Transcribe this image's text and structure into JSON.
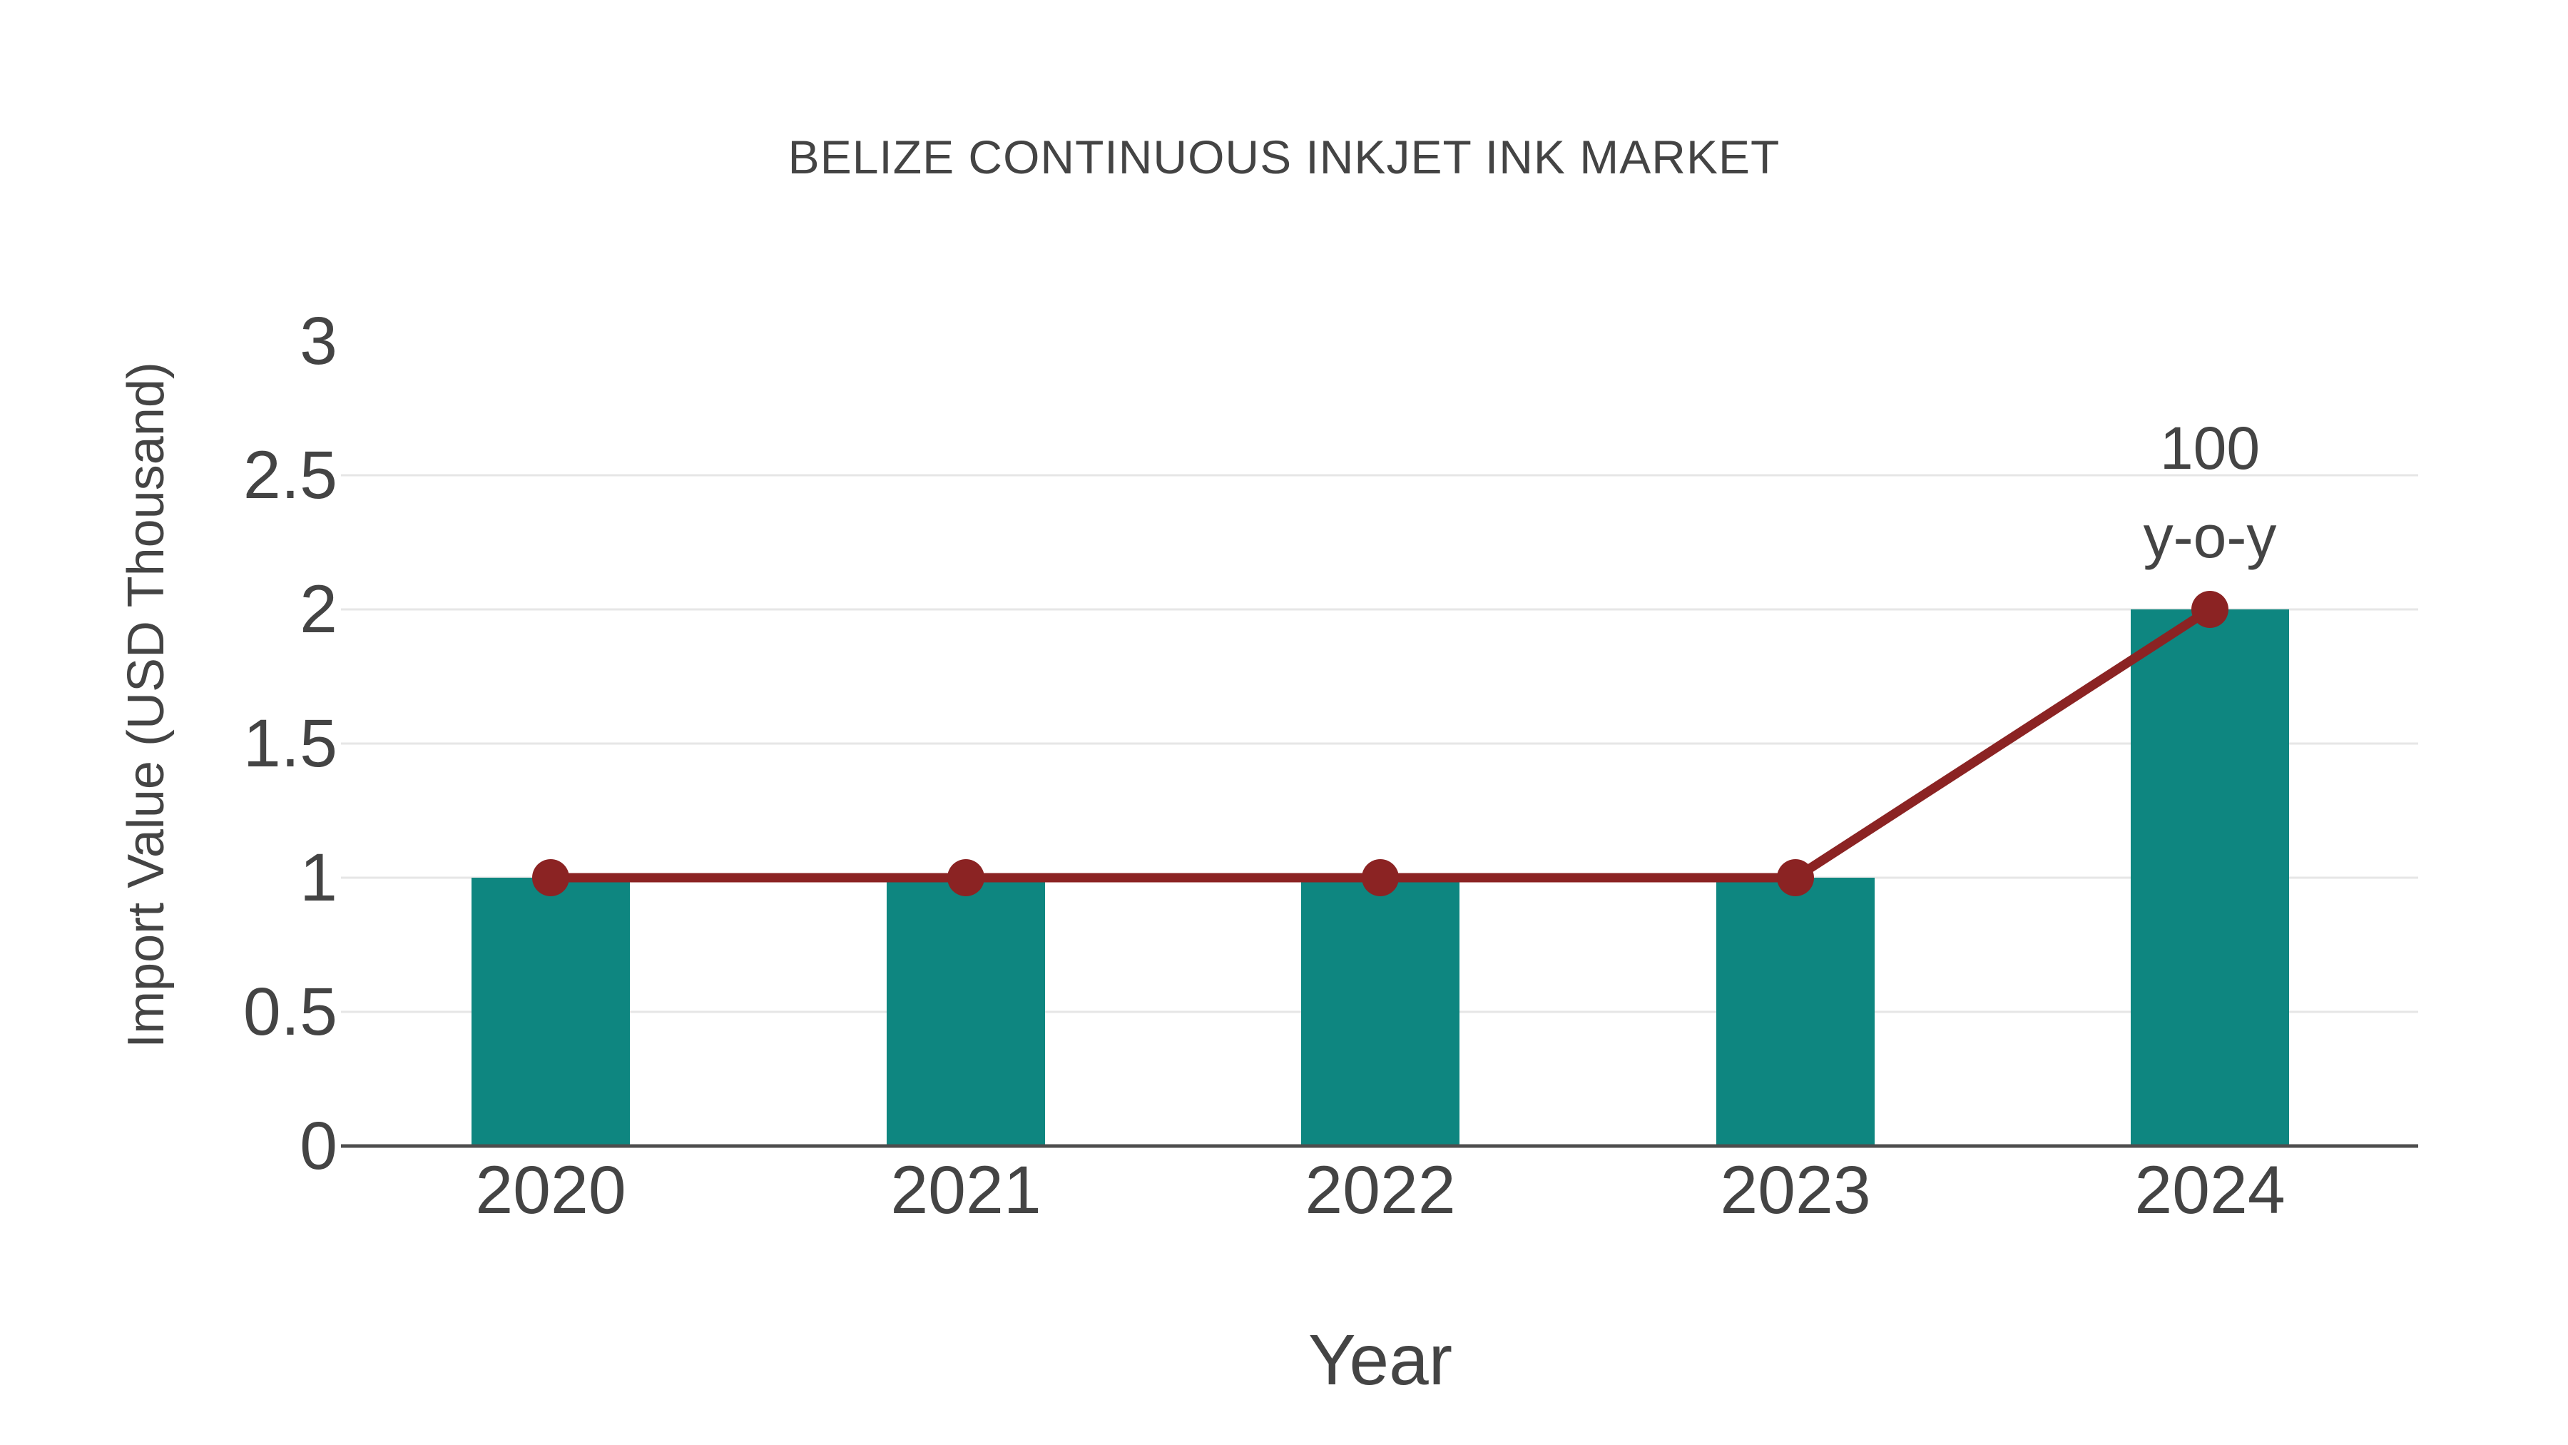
{
  "chart_data": {
    "type": "bar",
    "title": "BELIZE CONTINUOUS INKJET INK MARKET",
    "xlabel": "Year",
    "ylabel": "Import Value (USD Thousand)",
    "categories": [
      "2020",
      "2021",
      "2022",
      "2023",
      "2024"
    ],
    "series": [
      {
        "name": "import-value-bars",
        "type": "bar",
        "values": [
          1,
          1,
          1,
          1,
          2
        ]
      },
      {
        "name": "import-value-line",
        "type": "line",
        "values": [
          1,
          1,
          1,
          1,
          2
        ]
      }
    ],
    "annotation": {
      "lines": [
        "100",
        "y-o-y"
      ],
      "x_category": "2024"
    },
    "y_ticks": [
      "0",
      "0.5",
      "1",
      "1.5",
      "2",
      "2.5",
      "3"
    ],
    "ylim": [
      0,
      3
    ],
    "grid": true,
    "legend": false,
    "colors": {
      "bar": "#0e8680",
      "line": "#8b2323",
      "marker": "#8b2323",
      "text": "#444444",
      "grid": "#e6e6e6",
      "axis": "#4d4d4d",
      "background": "#ffffff"
    }
  }
}
